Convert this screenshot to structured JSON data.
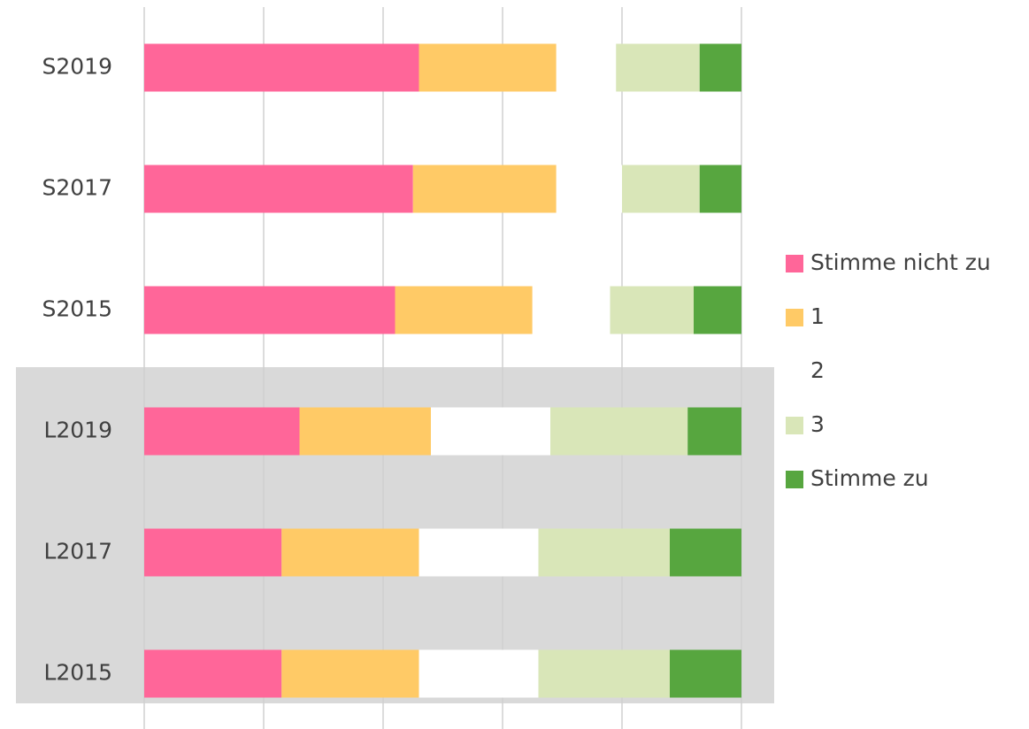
{
  "chart_data": {
    "type": "stacked_barh",
    "categories": [
      "S2019",
      "S2017",
      "S2015",
      "L2019",
      "L2017",
      "L2015"
    ],
    "series": [
      {
        "name": "Stimme nicht zu",
        "color": "#ff6699",
        "values": [
          46,
          45,
          42,
          26,
          23,
          23
        ]
      },
      {
        "name": "1",
        "color": "#ffca66",
        "values": [
          23,
          24,
          23,
          22,
          23,
          23
        ]
      },
      {
        "name": "2",
        "color": "#ffffff",
        "values": [
          10,
          11,
          13,
          20,
          20,
          20
        ]
      },
      {
        "name": "3",
        "color": "#d9e6b8",
        "values": [
          14,
          13,
          14,
          23,
          22,
          22
        ]
      },
      {
        "name": "Stimme zu",
        "color": "#57a63f",
        "values": [
          7,
          7,
          8,
          9,
          12,
          12
        ]
      }
    ],
    "xlim": [
      0,
      100
    ],
    "xticks": [
      0,
      20,
      40,
      60,
      80,
      100
    ],
    "grid": true,
    "legend": "right"
  }
}
